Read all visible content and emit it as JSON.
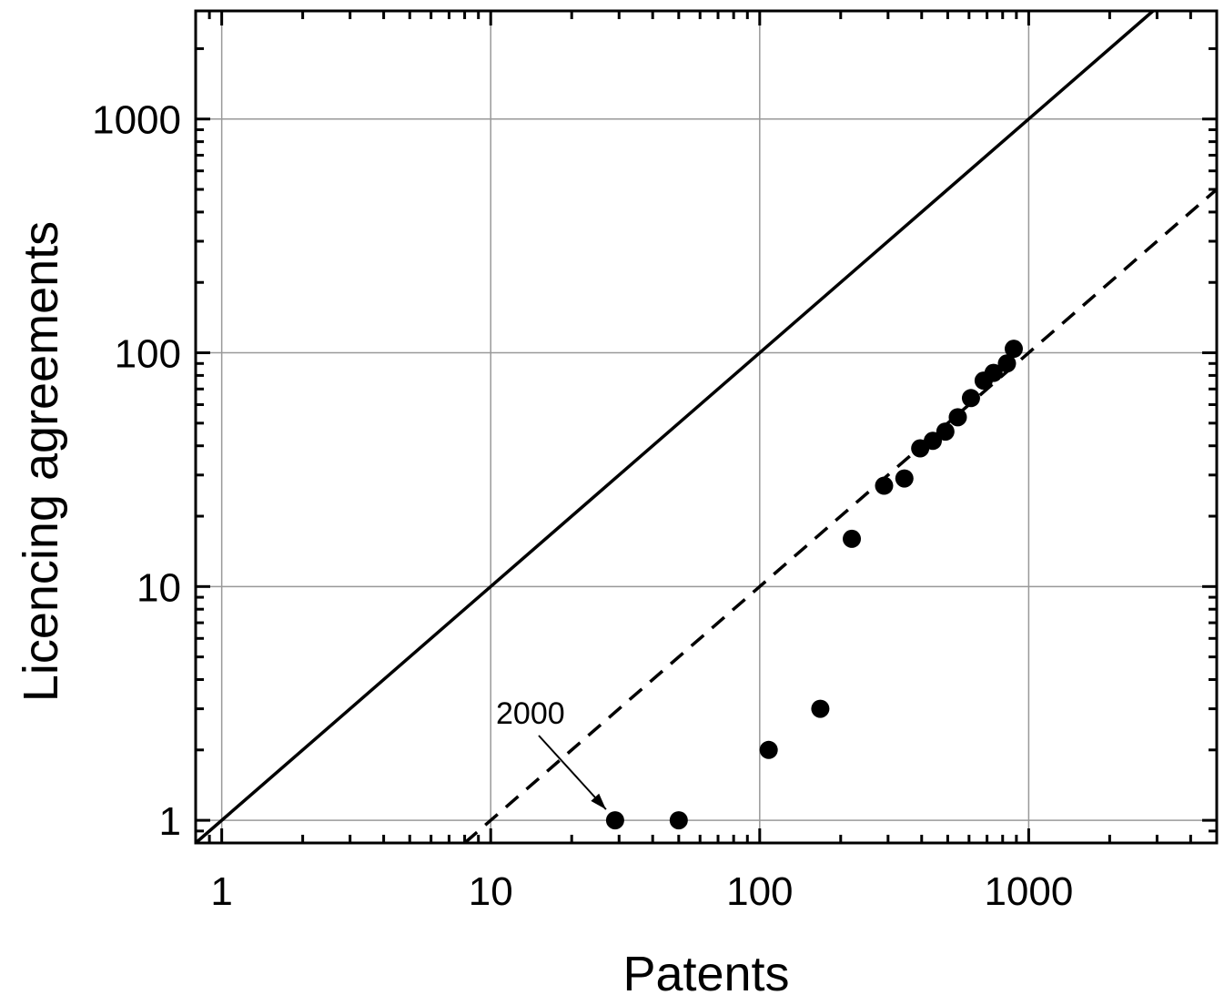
{
  "chart_data": {
    "type": "scatter",
    "title": "",
    "xlabel": "Patents",
    "ylabel": "Licencing agreements",
    "x_scale": "log",
    "y_scale": "log",
    "xlim": [
      0.8,
      5000
    ],
    "ylim": [
      0.8,
      2900
    ],
    "grid": true,
    "x_ticks": [
      {
        "value": 1,
        "label": "1"
      },
      {
        "value": 10,
        "label": "10"
      },
      {
        "value": 100,
        "label": "100"
      },
      {
        "value": 1000,
        "label": "1000"
      }
    ],
    "y_ticks": [
      {
        "value": 1,
        "label": "1"
      },
      {
        "value": 10,
        "label": "10"
      },
      {
        "value": 100,
        "label": "100"
      },
      {
        "value": 1000,
        "label": "1000"
      }
    ],
    "points": [
      {
        "x": 29,
        "y": 1
      },
      {
        "x": 50,
        "y": 1
      },
      {
        "x": 108,
        "y": 2
      },
      {
        "x": 168,
        "y": 3
      },
      {
        "x": 220,
        "y": 16
      },
      {
        "x": 290,
        "y": 27
      },
      {
        "x": 345,
        "y": 29
      },
      {
        "x": 395,
        "y": 39
      },
      {
        "x": 440,
        "y": 42
      },
      {
        "x": 490,
        "y": 46
      },
      {
        "x": 545,
        "y": 53
      },
      {
        "x": 610,
        "y": 64
      },
      {
        "x": 680,
        "y": 76
      },
      {
        "x": 740,
        "y": 82
      },
      {
        "x": 830,
        "y": 90
      },
      {
        "x": 880,
        "y": 104
      }
    ],
    "lines": [
      {
        "style": "solid",
        "slope_ratio": 1
      },
      {
        "style": "dashed",
        "slope_ratio": 0.1
      }
    ],
    "annotations": [
      {
        "text": "2000",
        "x": 29,
        "y": 1
      }
    ]
  }
}
